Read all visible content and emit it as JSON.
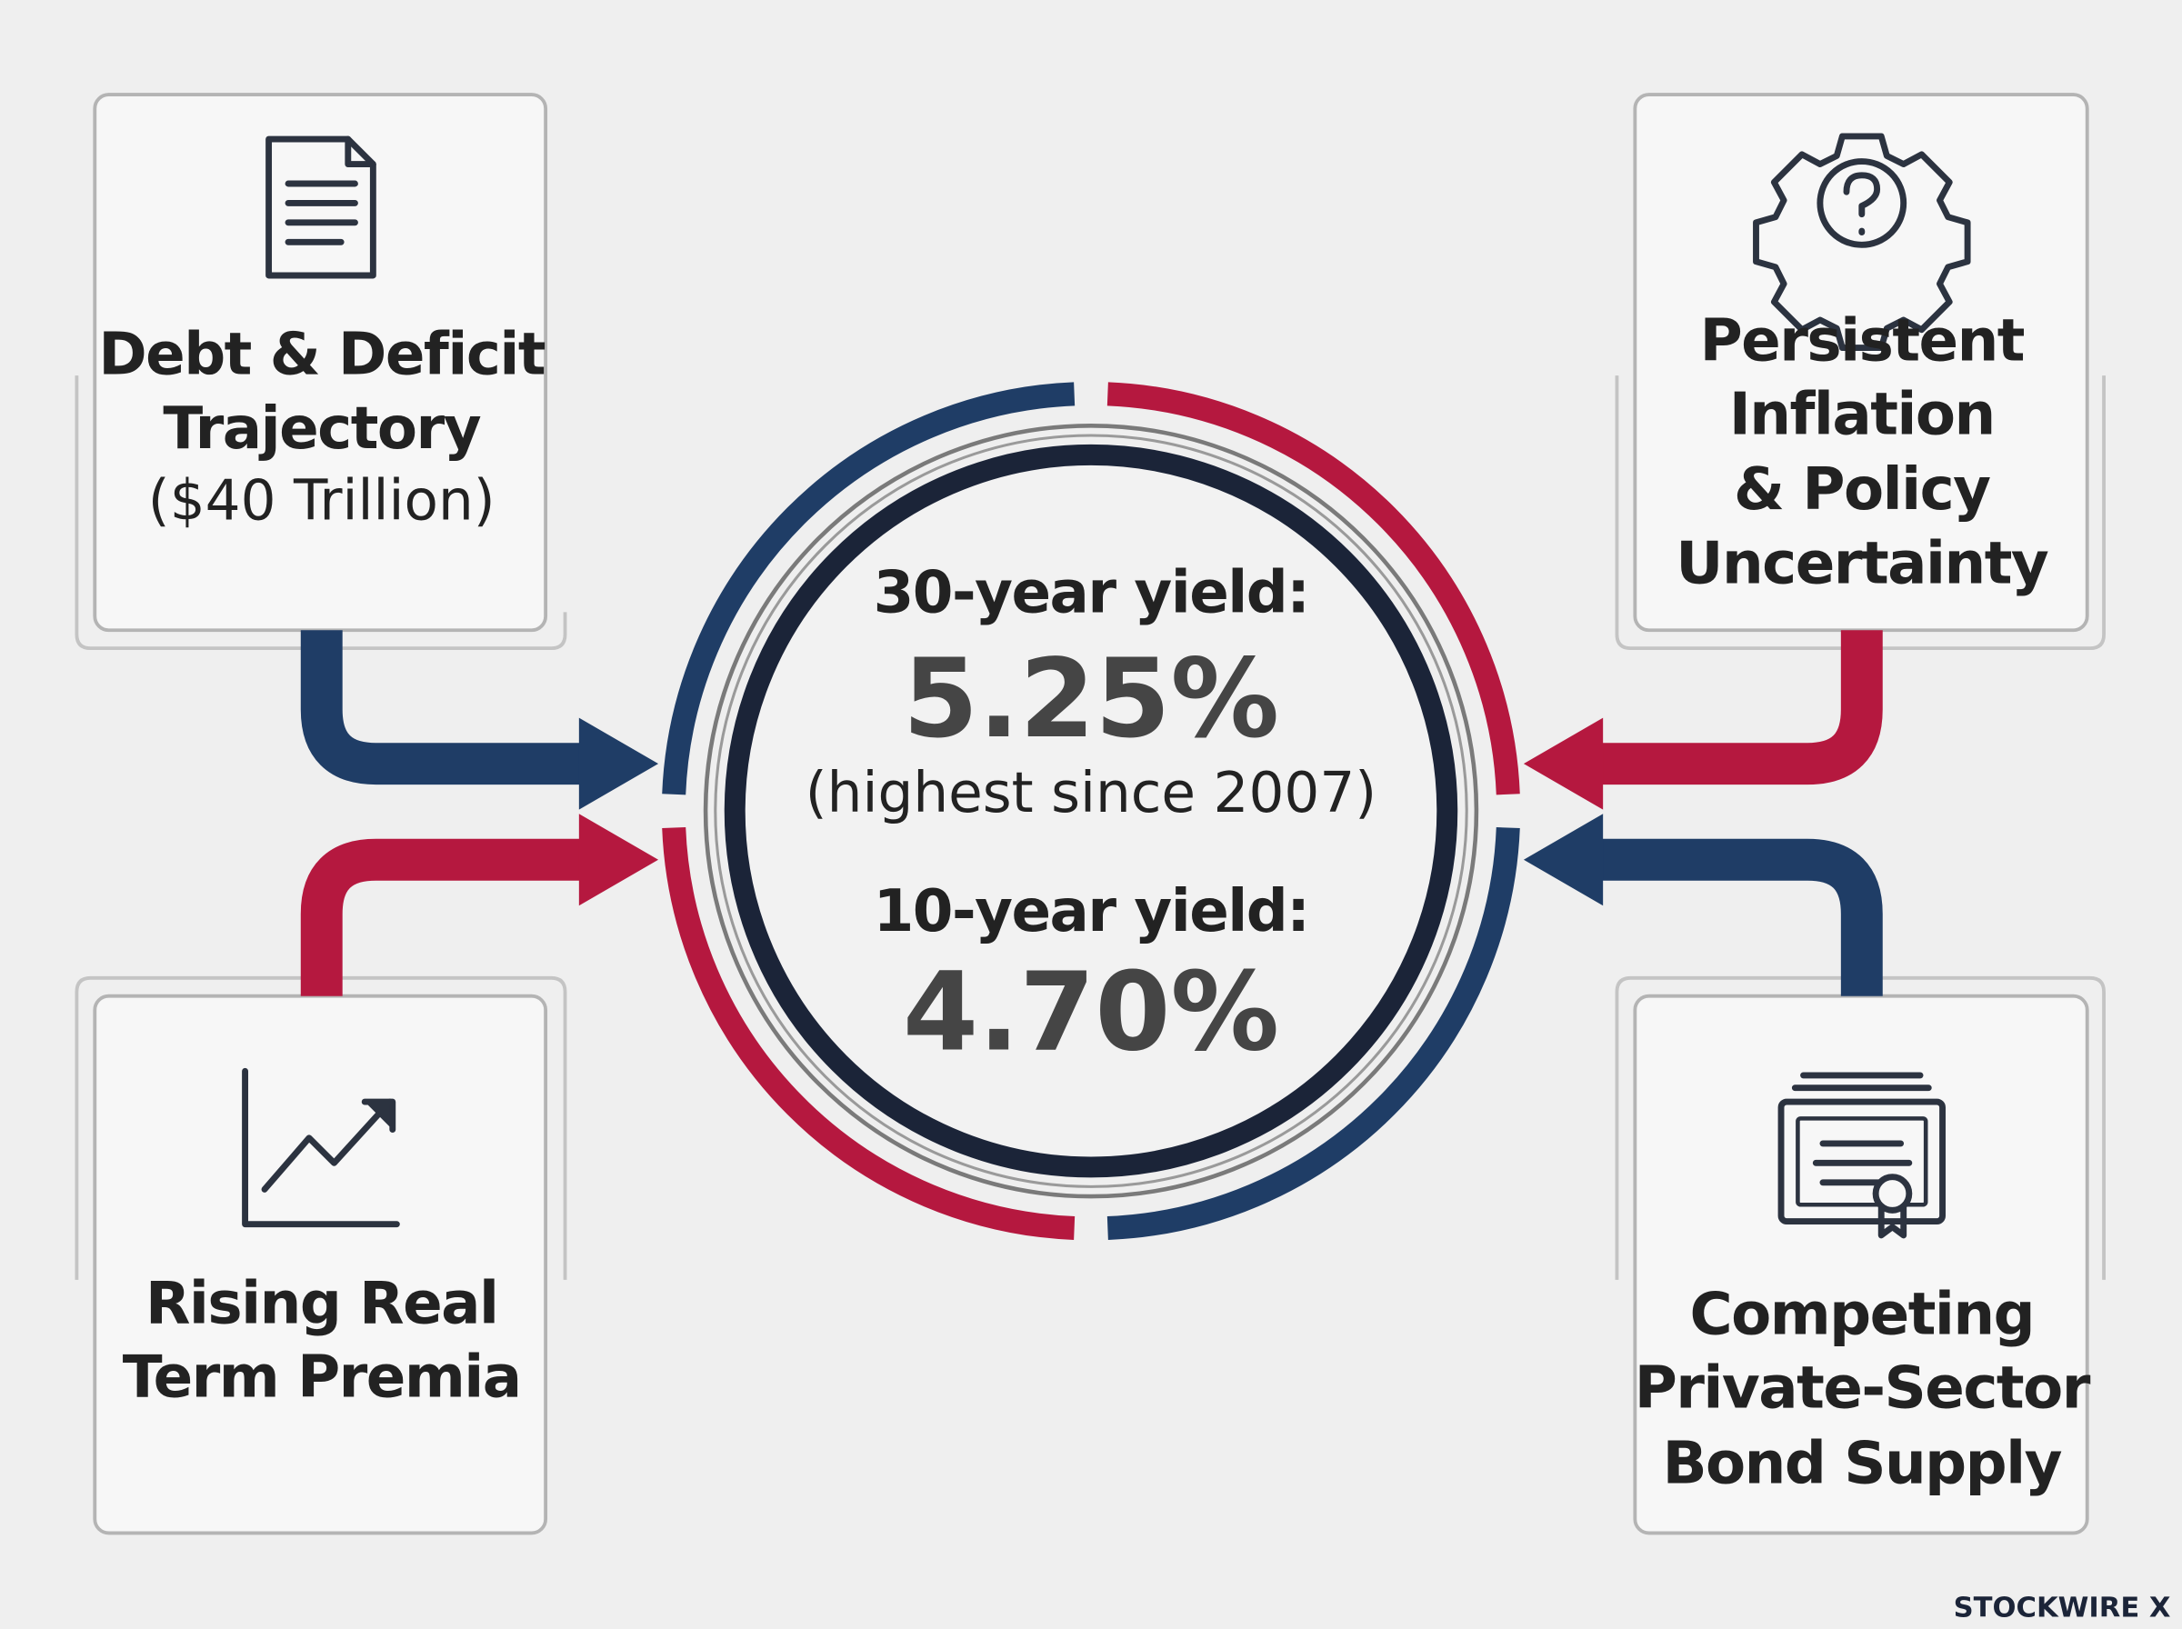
{
  "nodes": [
    {
      "lines": [
        "Debt & Deficit",
        "Trajectory"
      ],
      "note": "($40 Trillion)"
    },
    {
      "lines": [
        "Persistent",
        "Inflation",
        "& Policy",
        "Uncertainty"
      ]
    },
    {
      "lines": [
        "Rising Real",
        "Term Premia"
      ]
    },
    {
      "lines": [
        "Competing",
        "Private-Sector",
        "Bond Supply"
      ]
    }
  ],
  "center": {
    "label_30": "30-year yield:",
    "value_30": "5.25%",
    "note_30": "(highest since 2007)",
    "label_10": "10-year yield:",
    "value_10": "4.70%"
  },
  "brand": "STOCKWIRE X"
}
